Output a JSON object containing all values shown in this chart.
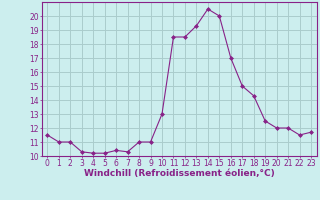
{
  "x": [
    0,
    1,
    2,
    3,
    4,
    5,
    6,
    7,
    8,
    9,
    10,
    11,
    12,
    13,
    14,
    15,
    16,
    17,
    18,
    19,
    20,
    21,
    22,
    23
  ],
  "y": [
    11.5,
    11.0,
    11.0,
    10.3,
    10.2,
    10.2,
    10.4,
    10.3,
    11.0,
    11.0,
    13.0,
    18.5,
    18.5,
    19.3,
    20.5,
    20.0,
    17.0,
    15.0,
    14.3,
    12.5,
    12.0,
    12.0,
    11.5,
    11.7
  ],
  "line_color": "#882288",
  "marker": "D",
  "marker_size": 2,
  "bg_color": "#cceeee",
  "grid_color": "#aacccc",
  "xlabel": "Windchill (Refroidissement éolien,°C)",
  "xlabel_color": "#882288",
  "tick_color": "#882288",
  "ylim": [
    10,
    21
  ],
  "xlim": [
    -0.5,
    23.5
  ],
  "yticks": [
    10,
    11,
    12,
    13,
    14,
    15,
    16,
    17,
    18,
    19,
    20
  ],
  "xticks": [
    0,
    1,
    2,
    3,
    4,
    5,
    6,
    7,
    8,
    9,
    10,
    11,
    12,
    13,
    14,
    15,
    16,
    17,
    18,
    19,
    20,
    21,
    22,
    23
  ],
  "tick_fontsize": 5.5,
  "xlabel_fontsize": 6.5
}
